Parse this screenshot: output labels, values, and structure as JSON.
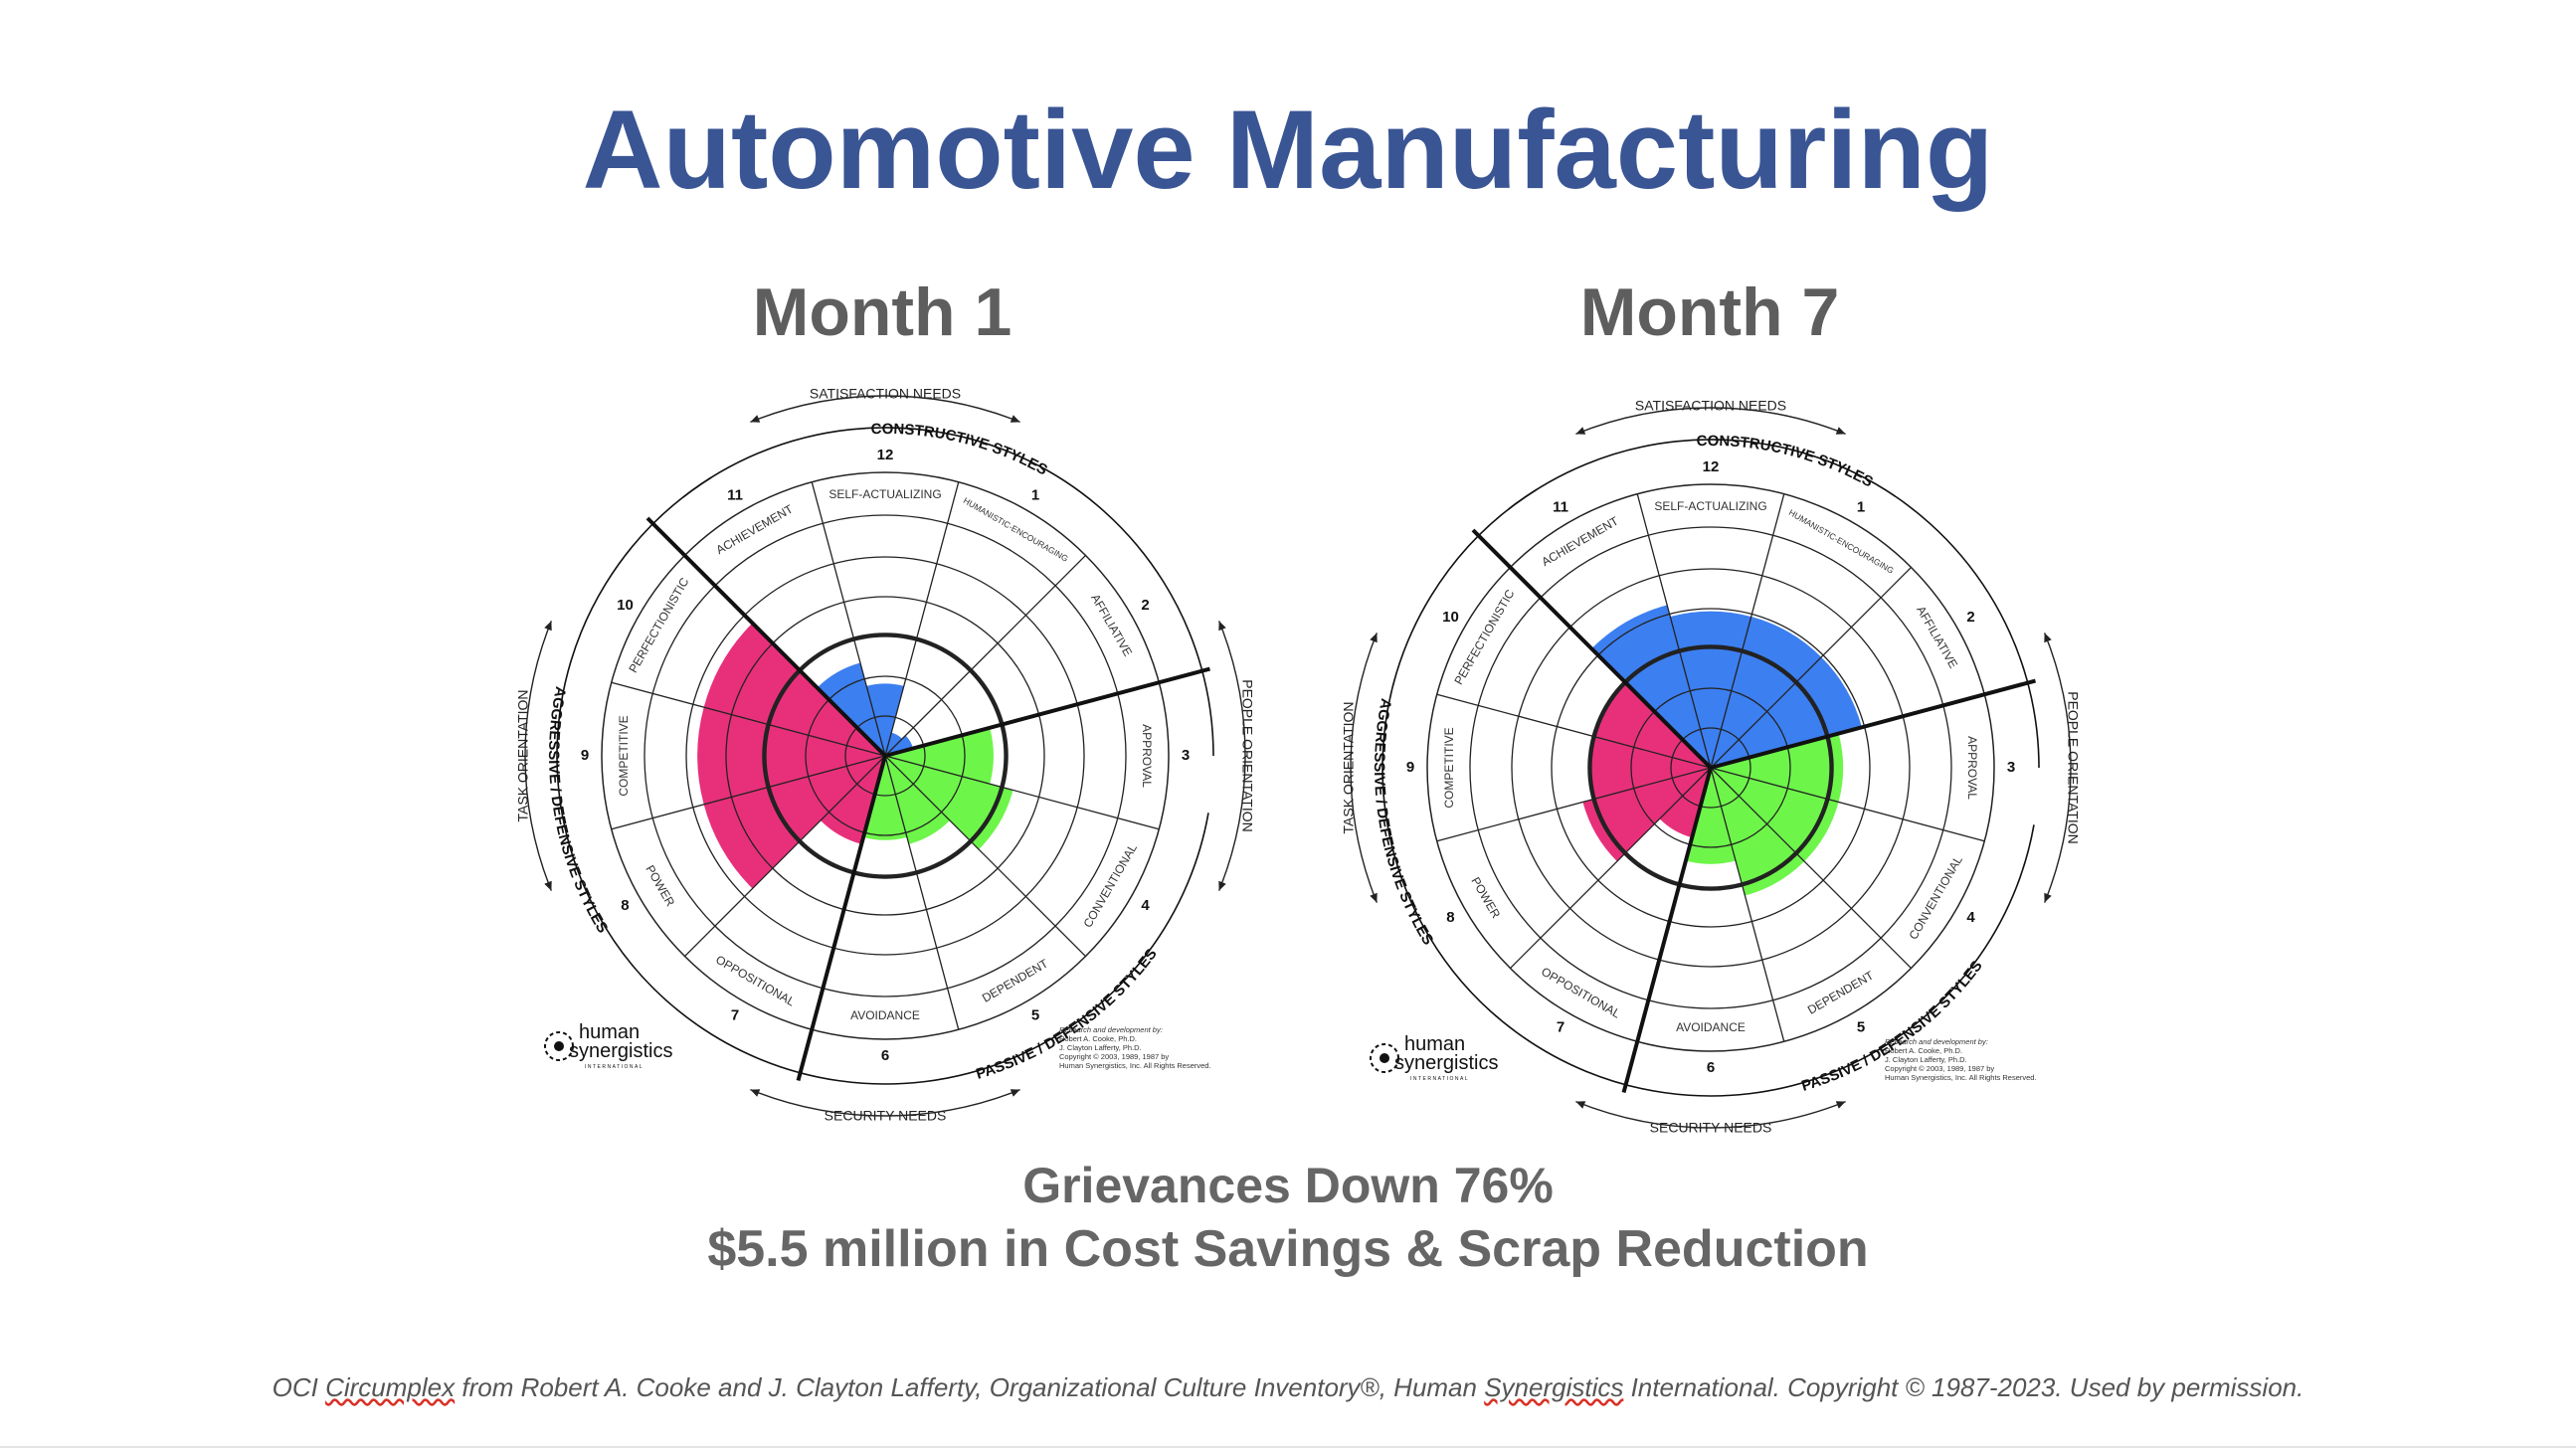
{
  "title": "Automotive Manufacturing",
  "colors": {
    "title": "#3a5594",
    "constructive": "#3c7ff0",
    "passive_defensive": "#6ef54a",
    "aggressive_defensive": "#e8307a",
    "text_gray": "#666666"
  },
  "circumplex_labels": {
    "top_outer": "SATISFACTION NEEDS",
    "bottom_outer": "SECURITY NEEDS",
    "left_outer": "TASK ORIENTATION",
    "right_outer": "PEOPLE ORIENTATION",
    "constructive": "CONSTRUCTIVE STYLES",
    "passive": "PASSIVE / DEFENSIVE STYLES",
    "aggressive": "AGGRESSIVE / DEFENSIVE STYLES",
    "logo_line1": "human",
    "logo_line2": "synergistics",
    "logo_line3": "INTERNATIONAL",
    "credit": [
      "Research and development by:",
      "Robert A. Cooke, Ph.D.",
      "J. Clayton Lafferty, Ph.D.",
      "Copyright © 2003, 1989, 1987 by",
      "Human Synergistics, Inc. All Rights Reserved."
    ]
  },
  "chart_data": [
    {
      "type": "circumplex",
      "title": "Month 1",
      "categories": [
        "1",
        "2",
        "3",
        "4",
        "5",
        "6",
        "7",
        "8",
        "9",
        "10",
        "11",
        "12"
      ],
      "styles": [
        "HUMANISTIC-ENCOURAGING",
        "AFFILIATIVE",
        "APPROVAL",
        "CONVENTIONAL",
        "DEPENDENT",
        "AVOIDANCE",
        "OPPOSITIONAL",
        "POWER",
        "COMPETITIVE",
        "PERFECTIONISTIC",
        "ACHIEVEMENT",
        "SELF-ACTUALIZING"
      ],
      "values": [
        0.1,
        0.12,
        0.45,
        0.55,
        0.38,
        0.35,
        0.38,
        0.78,
        0.78,
        0.78,
        0.4,
        0.3
      ]
    },
    {
      "type": "circumplex",
      "title": "Month 7",
      "categories": [
        "1",
        "2",
        "3",
        "4",
        "5",
        "6",
        "7",
        "8",
        "9",
        "10",
        "11",
        "12"
      ],
      "styles": [
        "HUMANISTIC-ENCOURAGING",
        "AFFILIATIVE",
        "APPROVAL",
        "CONVENTIONAL",
        "DEPENDENT",
        "AVOIDANCE",
        "OPPOSITIONAL",
        "POWER",
        "COMPETITIVE",
        "PERFECTIONISTIC",
        "ACHIEVEMENT",
        "SELF-ACTUALIZING"
      ],
      "values": [
        0.65,
        0.65,
        0.55,
        0.55,
        0.55,
        0.4,
        0.3,
        0.55,
        0.5,
        0.5,
        0.7,
        0.65
      ]
    }
  ],
  "stats": {
    "line1": "Grievances Down 76%",
    "line2": "$5.5 million in Cost Savings & Scrap Reduction"
  },
  "footer": {
    "p1": "OCI ",
    "w1": "Circumplex",
    "p2": " from Robert A. Cooke and J. Clayton Lafferty, Organizational Culture Inventory®, Human ",
    "w2": "Synergistics",
    "p3": " International. Copyright © 1987-2023. Used by permission."
  }
}
